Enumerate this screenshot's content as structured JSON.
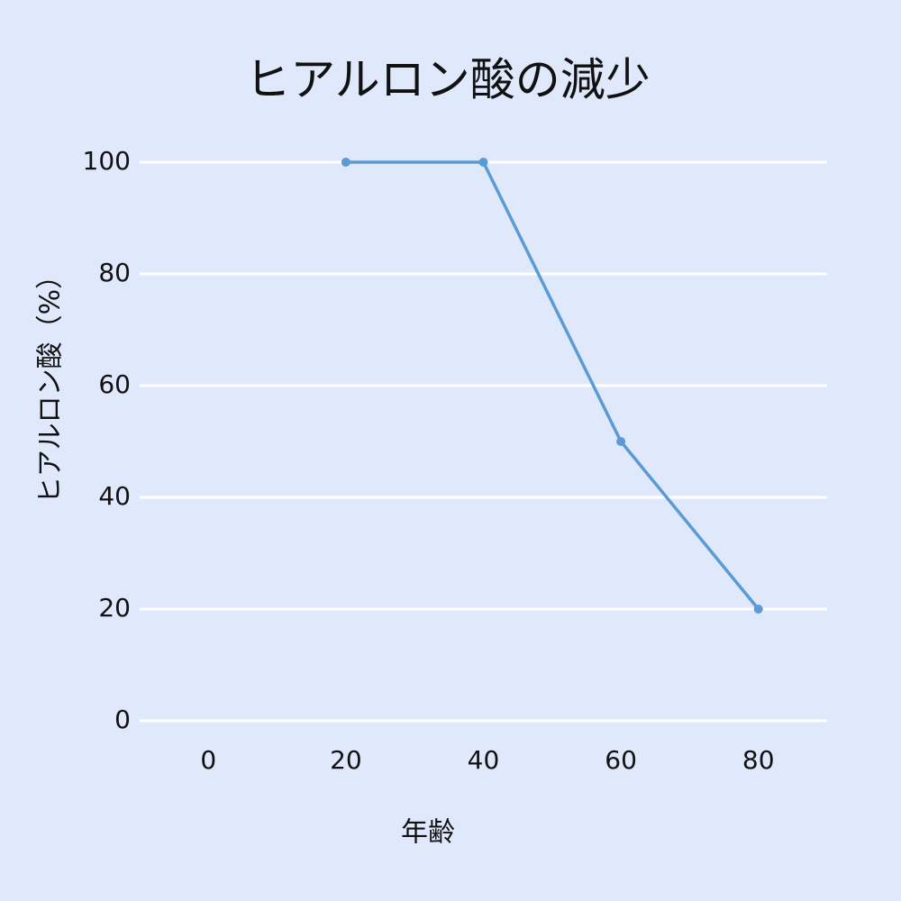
{
  "chart_data": {
    "type": "line",
    "title": "ヒアルロン酸の減少",
    "x_label": "年齢",
    "y_label": "ヒアルロン酸（%）",
    "x": [
      20,
      40,
      60,
      80
    ],
    "values": [
      100,
      100,
      50,
      20
    ],
    "color": "#5b9bd5",
    "xlim": [
      -10,
      90
    ],
    "xticks": [
      0,
      20,
      40,
      60,
      80
    ],
    "ylim": [
      0,
      100
    ],
    "yticks": [
      0,
      20,
      40,
      60,
      80,
      100
    ],
    "grid": true
  }
}
